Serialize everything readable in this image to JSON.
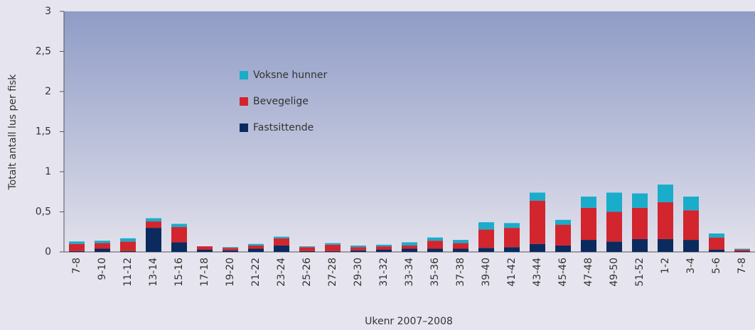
{
  "chart_data": {
    "type": "stacked_bar",
    "y_label": "Totalt antall lus per fisk",
    "x_label": "Ukenr 2007–2008",
    "categories": [
      "7-8",
      "9-10",
      "11-12",
      "13-14",
      "15-16",
      "17-18",
      "19-20",
      "21-22",
      "23-24",
      "25-26",
      "27-28",
      "29-30",
      "31-32",
      "33-34",
      "35-36",
      "37-38",
      "39-40",
      "41-42",
      "43-44",
      "45-46",
      "47-48",
      "49-50",
      "51-52",
      "1-2",
      "3-4",
      "5-6",
      "7-8"
    ],
    "series": [
      {
        "name": "Fastsittende",
        "color": "#0b2a5e",
        "values": [
          0.01,
          0.04,
          0.01,
          0.3,
          0.12,
          0.03,
          0.02,
          0.04,
          0.08,
          0.01,
          0.01,
          0.02,
          0.03,
          0.04,
          0.04,
          0.04,
          0.05,
          0.06,
          0.1,
          0.08,
          0.15,
          0.13,
          0.16,
          0.16,
          0.15,
          0.03,
          0.01
        ]
      },
      {
        "name": "Bevegelige",
        "color": "#d3252d",
        "values": [
          0.09,
          0.07,
          0.12,
          0.08,
          0.19,
          0.04,
          0.03,
          0.04,
          0.09,
          0.05,
          0.08,
          0.04,
          0.04,
          0.04,
          0.1,
          0.07,
          0.23,
          0.24,
          0.54,
          0.26,
          0.4,
          0.37,
          0.39,
          0.46,
          0.37,
          0.15,
          0.02
        ]
      },
      {
        "name": "Voksne hunner",
        "color": "#1aaccb",
        "values": [
          0.03,
          0.03,
          0.04,
          0.04,
          0.04,
          0.0,
          0.01,
          0.02,
          0.02,
          0.01,
          0.02,
          0.02,
          0.02,
          0.04,
          0.04,
          0.04,
          0.09,
          0.06,
          0.1,
          0.06,
          0.14,
          0.24,
          0.18,
          0.22,
          0.17,
          0.05,
          0.01
        ]
      }
    ],
    "ylim": [
      0,
      3
    ],
    "yticks": [
      0,
      {
        "value": 0.5,
        "label": "0,5"
      },
      1,
      {
        "value": 1.5,
        "label": "1,5"
      },
      2,
      {
        "value": 2.5,
        "label": "2,5"
      },
      3
    ]
  }
}
